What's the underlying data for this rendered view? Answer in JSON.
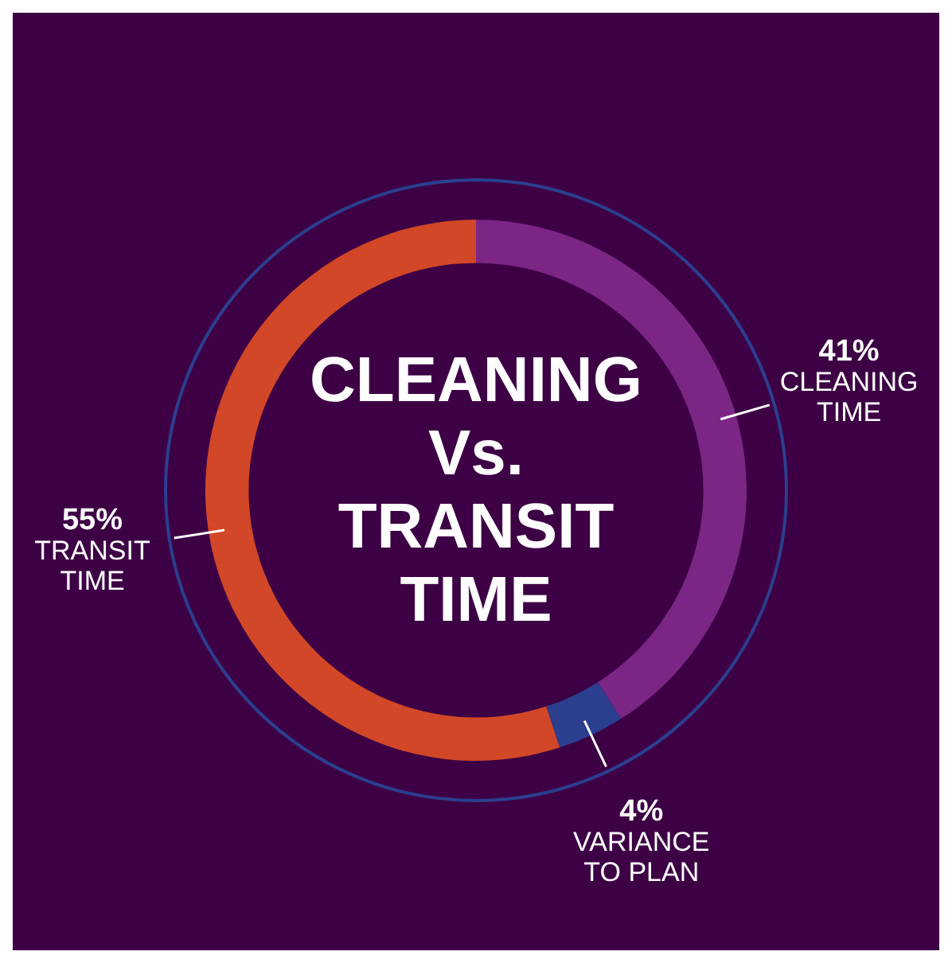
{
  "chart_data": {
    "type": "donut",
    "title": "CLEANING Vs. TRANSIT TIME",
    "categories": [
      "CLEANING TIME",
      "VARIANCE TO PLAN",
      "TRANSIT TIME"
    ],
    "values": [
      41,
      4,
      55
    ],
    "colors": [
      "#7b2585",
      "#2b3f8f",
      "#d24727"
    ],
    "value_labels": [
      "41%",
      "4%",
      "55%"
    ]
  }
}
